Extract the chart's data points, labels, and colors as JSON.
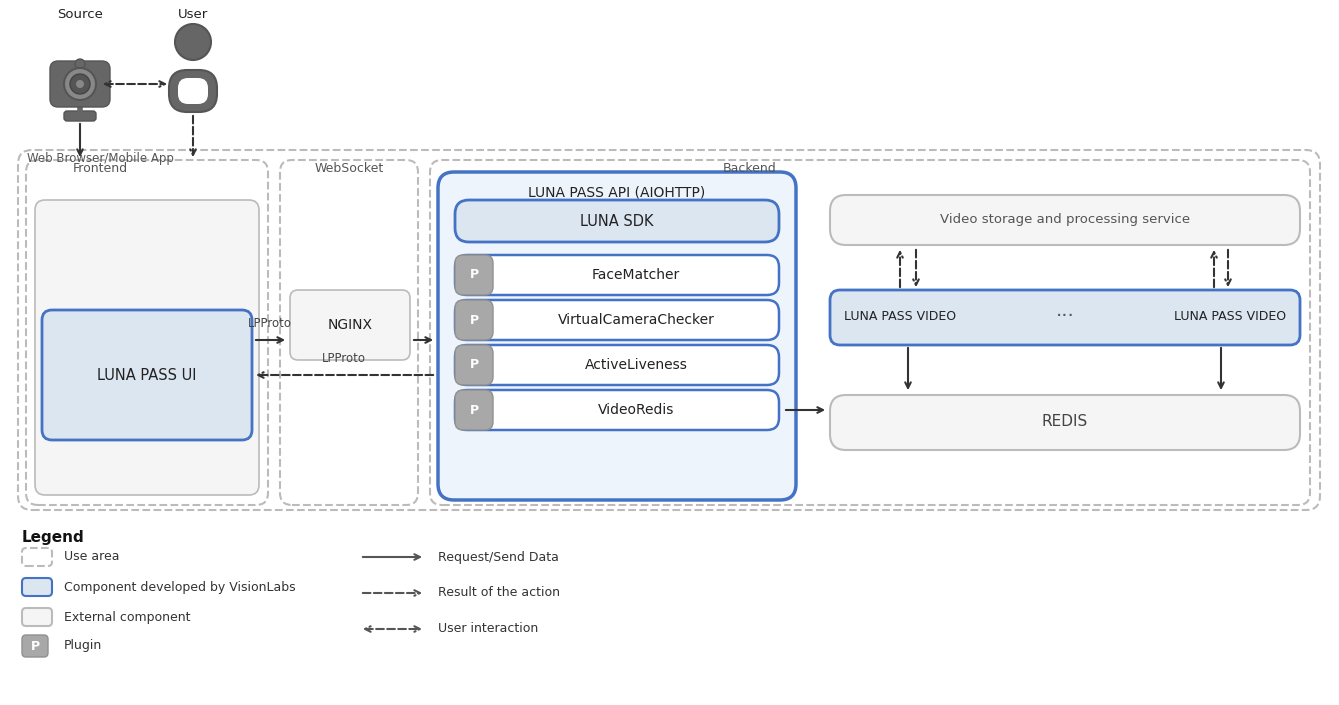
{
  "bg_color": "#ffffff",
  "diagram": {
    "source_label": "Source",
    "user_label": "User",
    "frontend_label": "Frontend",
    "websocket_label": "WebSocket",
    "backend_label": "Backend",
    "web_browser_label": "Web Browser/Mobile App",
    "nginx_label": "NGINX",
    "luna_pass_ui_label": "LUNA PASS UI",
    "luna_pass_api_label": "LUNA PASS API (AIOHTTP)",
    "luna_sdk_label": "LUNA SDK",
    "face_matcher_label": "FaceMatcher",
    "virtual_camera_label": "VirtualCameraChecker",
    "active_liveness_label": "ActiveLiveness",
    "video_redis_label": "VideoRedis",
    "video_storage_label": "Video storage and processing service",
    "luna_pass_video1_label": "LUNA PASS VIDEO",
    "luna_pass_video2_label": "LUNA PASS VIDEO",
    "redis_label": "REDIS",
    "lpproto_label": "LPProto",
    "arrow_color": "#333333",
    "blue_border": "#4472C4",
    "blue_fill": "#dce6f1",
    "blue_fill_light": "#eef4fc",
    "gray_border": "#bbbbbb",
    "gray_fill": "#f5f5f5",
    "plugin_fill": "#a0a0a0",
    "plugin_border": "#888888"
  },
  "legend": {
    "title": "Legend",
    "use_area": "Use area",
    "visionlabs": "Component developed by VisionLabs",
    "external": "External component",
    "plugin": "Plugin",
    "request": "Request/Send Data",
    "result": "Result of the action",
    "user_interaction": "User interaction"
  }
}
